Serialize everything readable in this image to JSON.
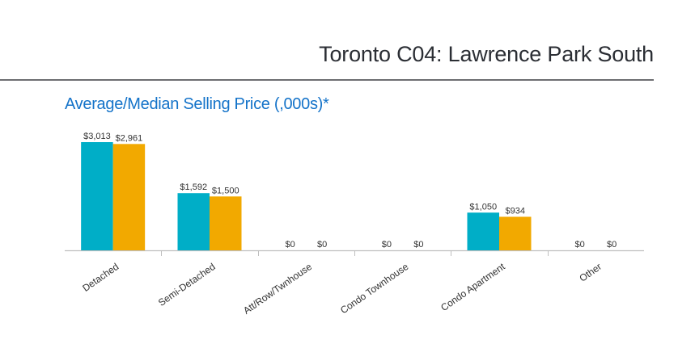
{
  "header": {
    "title": "Toronto C04: Lawrence Park South"
  },
  "chart_data": {
    "type": "bar",
    "title": "Average/Median Selling Price (,000s)*",
    "xlabel": "",
    "ylabel": "",
    "ylim": [
      0,
      3013
    ],
    "grid": false,
    "categories": [
      "Detached",
      "Semi-Detached",
      "Att/Row/Twnhouse",
      "Condo Townhouse",
      "Condo Apartment",
      "Other"
    ],
    "series": [
      {
        "name": "Average",
        "color": "#00aec7",
        "values": [
          3013,
          1592,
          0,
          0,
          1050,
          0
        ],
        "labels": [
          "$3,013",
          "$1,592",
          "$0",
          "$0",
          "$1,050",
          "$0"
        ]
      },
      {
        "name": "Median",
        "color": "#f2a900",
        "values": [
          2961,
          1500,
          0,
          0,
          934,
          0
        ],
        "labels": [
          "$2,961",
          "$1,500",
          "$0",
          "$0",
          "$934",
          "$0"
        ]
      }
    ]
  }
}
